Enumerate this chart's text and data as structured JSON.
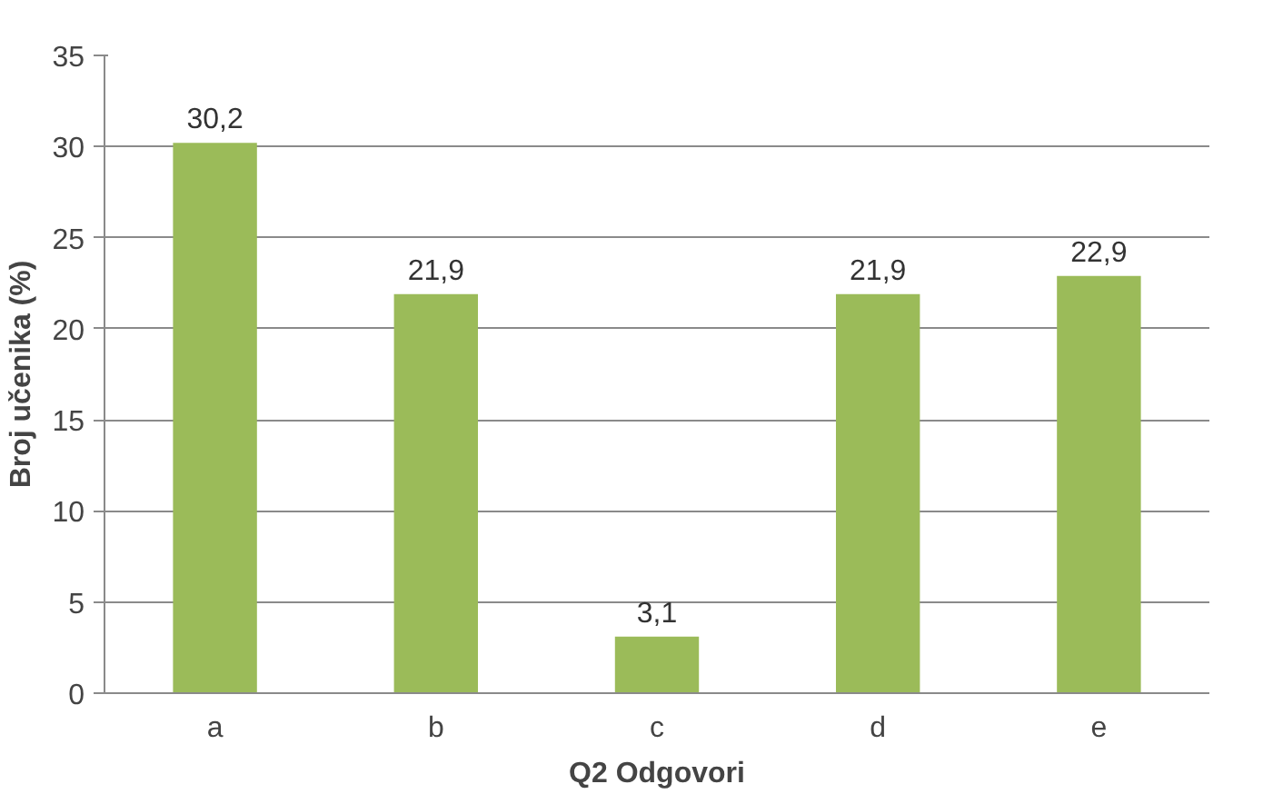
{
  "chart_data": {
    "type": "bar",
    "categories": [
      "a",
      "b",
      "c",
      "d",
      "e"
    ],
    "values": [
      30.2,
      21.9,
      3.1,
      21.9,
      22.9
    ],
    "value_labels": [
      "30,2",
      "21,9",
      "3,1",
      "21,9",
      "22,9"
    ],
    "color": "#9bbb59",
    "xlabel": "Q2 Odgovori",
    "ylabel": "Broj učenika (%)",
    "ylim": [
      0,
      35
    ],
    "yticks": [
      0,
      5,
      10,
      15,
      20,
      25,
      30,
      35
    ],
    "grid": "y"
  }
}
